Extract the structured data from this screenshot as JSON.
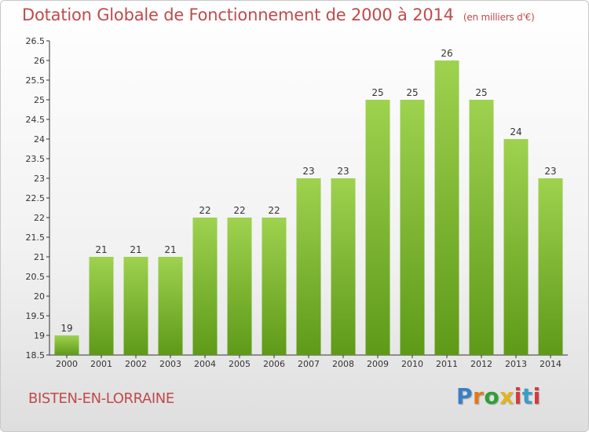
{
  "header": {
    "title": "Dotation Globale de Fonctionnement de 2000 à 2014",
    "unit": "(en milliers d'€)"
  },
  "footer": {
    "commune": "BISTEN-EN-LORRAINE",
    "logo": {
      "p": "P",
      "r": "r",
      "o": "o",
      "x": "x",
      "i": "i",
      "t": "t",
      "i2": "i"
    }
  },
  "colors": {
    "bar_light": "#9ed24f",
    "bar_dark": "#5e9a18",
    "title": "#c04a4a"
  },
  "chart_data": {
    "type": "bar",
    "title": "Dotation Globale de Fonctionnement de 2000 à 2014",
    "subtitle": "(en milliers d'€)",
    "xlabel": "",
    "ylabel": "",
    "categories": [
      "2000",
      "2001",
      "2002",
      "2003",
      "2004",
      "2005",
      "2006",
      "2007",
      "2008",
      "2009",
      "2010",
      "2011",
      "2012",
      "2013",
      "2014"
    ],
    "values": [
      19,
      21,
      21,
      21,
      22,
      22,
      22,
      23,
      23,
      25,
      25,
      26,
      25,
      24,
      23
    ],
    "data_labels": [
      "19",
      "21",
      "21",
      "21",
      "22",
      "22",
      "22",
      "23",
      "23",
      "25",
      "25",
      "26",
      "25",
      "24",
      "23"
    ],
    "ylim": [
      18.5,
      26.5
    ],
    "yticks": [
      "18.5",
      "19",
      "19.5",
      "20",
      "20.5",
      "21",
      "21.5",
      "22",
      "22.5",
      "23",
      "23.5",
      "24",
      "24.5",
      "25",
      "25.5",
      "26",
      "26.5"
    ],
    "grid": false,
    "legend": "none"
  }
}
